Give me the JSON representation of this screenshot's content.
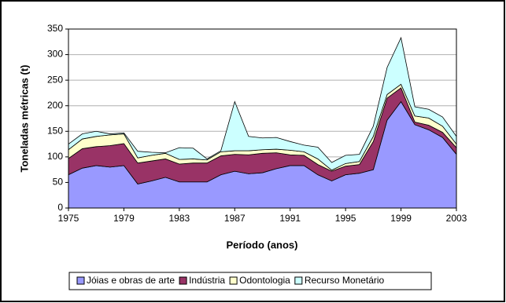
{
  "chart_data": {
    "type": "stacked-area",
    "x": [
      1975,
      1976,
      1977,
      1978,
      1979,
      1980,
      1981,
      1982,
      1983,
      1984,
      1985,
      1986,
      1987,
      1988,
      1989,
      1990,
      1991,
      1992,
      1993,
      1994,
      1995,
      1996,
      1997,
      1998,
      1999,
      2000,
      2001,
      2002,
      2003
    ],
    "series": [
      {
        "name": "Jóias e obras de arte",
        "color": "#9999ff",
        "values": [
          65,
          78,
          83,
          80,
          83,
          47,
          53,
          60,
          51,
          51,
          51,
          65,
          72,
          67,
          69,
          77,
          83,
          83,
          65,
          53,
          65,
          68,
          75,
          172,
          208,
          163,
          153,
          138,
          105
        ]
      },
      {
        "name": "Indústria",
        "color": "#993366",
        "values": [
          32,
          38,
          37,
          42,
          43,
          41,
          39,
          36,
          35,
          37,
          37,
          37,
          33,
          37,
          38,
          31,
          21,
          20,
          20,
          19,
          17,
          17,
          55,
          43,
          27,
          5,
          9,
          10,
          13
        ]
      },
      {
        "name": "Odontologia",
        "color": "#ffffcc",
        "values": [
          17,
          19,
          20,
          21,
          19,
          10,
          11,
          11,
          9,
          8,
          6,
          8,
          7,
          8,
          7,
          7,
          9,
          7,
          11,
          2,
          5,
          6,
          10,
          7,
          7,
          12,
          14,
          12,
          7
        ]
      },
      {
        "name": "Recurso Monetário",
        "color": "#ccffff",
        "values": [
          11,
          10,
          10,
          2,
          2,
          13,
          6,
          1,
          23,
          21,
          2,
          2,
          96,
          28,
          23,
          23,
          17,
          13,
          23,
          15,
          16,
          14,
          20,
          53,
          91,
          18,
          17,
          18,
          15
        ]
      }
    ],
    "x_label": "Período (anos)",
    "y_label": "Toneladas métricas (t)",
    "xlim": [
      1975,
      2003
    ],
    "xticks": [
      1975,
      1979,
      1983,
      1987,
      1991,
      1995,
      1999,
      2003
    ],
    "ylim": [
      0,
      350
    ],
    "yticks": [
      0,
      50,
      100,
      150,
      200,
      250,
      300,
      350
    ],
    "grid": true,
    "legend": "bottom"
  }
}
